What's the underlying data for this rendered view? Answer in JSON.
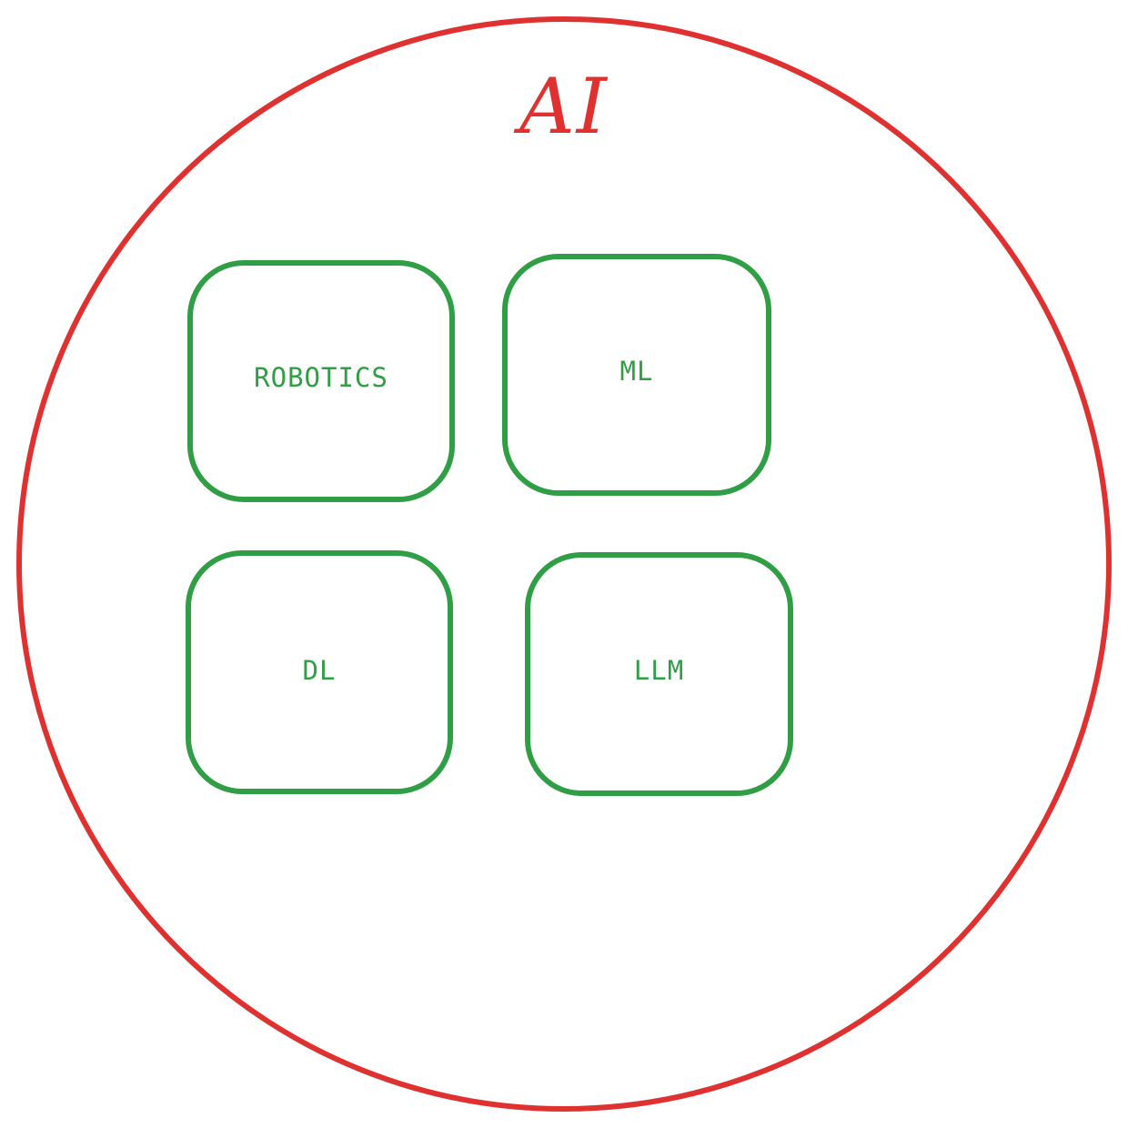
{
  "diagram": {
    "outer": {
      "label": "AI",
      "color": "#e03131",
      "shape": "circle"
    },
    "inner_nodes": [
      {
        "label": "ROBOTICS",
        "color": "#2f9e44",
        "shape": "rounded-rectangle"
      },
      {
        "label": "ML",
        "color": "#2f9e44",
        "shape": "rounded-rectangle"
      },
      {
        "label": "DL",
        "color": "#2f9e44",
        "shape": "rounded-rectangle"
      },
      {
        "label": "LLM",
        "color": "#2f9e44",
        "shape": "rounded-rectangle"
      }
    ]
  }
}
